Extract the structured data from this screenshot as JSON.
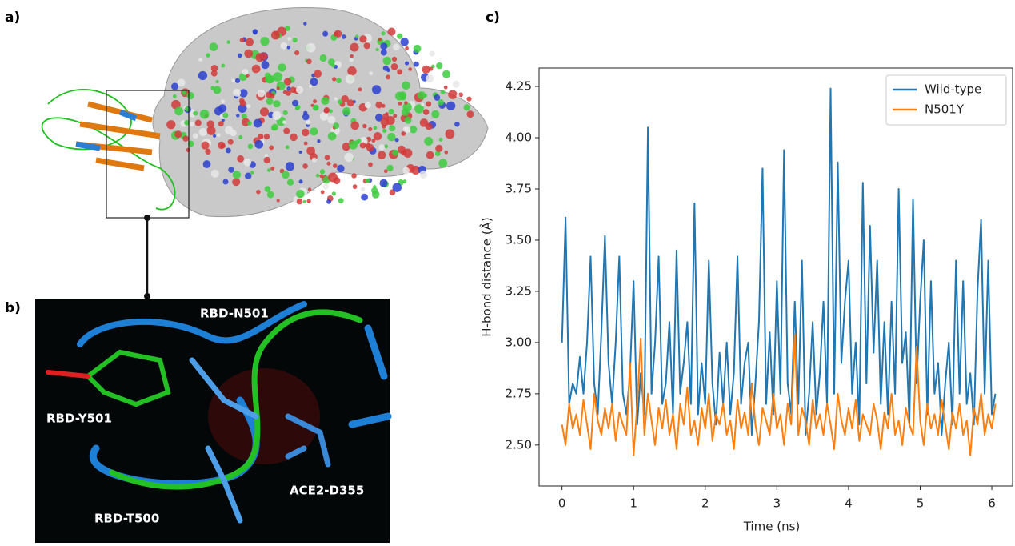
{
  "panels": {
    "a": {
      "label": "a)"
    },
    "b": {
      "label": "b)",
      "annotations": [
        "RBD-N501",
        "RBD-Y501",
        "RBD-T500",
        "ACE2-D355"
      ]
    }
  },
  "chart_data": {
    "type": "line",
    "label": "c)",
    "xlabel": "Time (ns)",
    "ylabel": "H-bond distance (Å)",
    "xlim": [
      -0.32,
      6.29
    ],
    "ylim": [
      2.3,
      4.34
    ],
    "xticks": [
      0,
      1,
      2,
      3,
      4,
      5,
      6
    ],
    "yticks": [
      {
        "value": 2.5,
        "label": "2.50"
      },
      2.75,
      {
        "value": 3.0,
        "label": "3.00"
      },
      3.25,
      {
        "value": 3.5,
        "label": "3.50"
      },
      3.75,
      {
        "value": 4.0,
        "label": "4.00"
      },
      4.25
    ],
    "legend": "upper right",
    "x": [
      0,
      0.05,
      0.1,
      0.15,
      0.2,
      0.25,
      0.3,
      0.35,
      0.4,
      0.45,
      0.5,
      0.55,
      0.6,
      0.65,
      0.7,
      0.75,
      0.8,
      0.85,
      0.9,
      0.95,
      1.0,
      1.05,
      1.1,
      1.15,
      1.2,
      1.25,
      1.3,
      1.35,
      1.4,
      1.45,
      1.5,
      1.55,
      1.6,
      1.65,
      1.7,
      1.75,
      1.8,
      1.85,
      1.9,
      1.95,
      2.0,
      2.05,
      2.1,
      2.15,
      2.2,
      2.25,
      2.3,
      2.35,
      2.4,
      2.45,
      2.5,
      2.55,
      2.6,
      2.65,
      2.7,
      2.75,
      2.8,
      2.85,
      2.9,
      2.95,
      3.0,
      3.05,
      3.1,
      3.15,
      3.2,
      3.25,
      3.3,
      3.35,
      3.4,
      3.45,
      3.5,
      3.55,
      3.6,
      3.65,
      3.7,
      3.75,
      3.8,
      3.85,
      3.9,
      3.95,
      4.0,
      4.05,
      4.1,
      4.15,
      4.2,
      4.25,
      4.3,
      4.35,
      4.4,
      4.45,
      4.5,
      4.55,
      4.6,
      4.65,
      4.7,
      4.75,
      4.8,
      4.85,
      4.9,
      4.95,
      5.0,
      5.05,
      5.1,
      5.15,
      5.2,
      5.25,
      5.3,
      5.35,
      5.4,
      5.45,
      5.5,
      5.55,
      5.6,
      5.65,
      5.7,
      5.75,
      5.8,
      5.85,
      5.9,
      5.95,
      6.0,
      6.05
    ],
    "series": [
      {
        "name": "Wild-type",
        "color": "#1f77b4",
        "values": [
          3.0,
          3.61,
          2.7,
          2.8,
          2.75,
          2.93,
          2.75,
          3.0,
          3.42,
          2.8,
          2.65,
          3.05,
          3.52,
          2.9,
          2.7,
          3.0,
          3.42,
          2.75,
          2.65,
          2.85,
          3.3,
          2.6,
          2.85,
          2.65,
          4.05,
          2.75,
          3.0,
          3.42,
          2.7,
          2.8,
          3.1,
          2.65,
          3.45,
          2.75,
          2.9,
          3.1,
          2.7,
          3.68,
          2.65,
          2.9,
          2.7,
          3.4,
          2.8,
          2.6,
          2.95,
          2.7,
          3.0,
          2.65,
          2.85,
          3.42,
          2.7,
          2.9,
          3.0,
          2.55,
          2.8,
          3.1,
          3.85,
          2.7,
          3.05,
          2.65,
          3.3,
          2.75,
          3.94,
          2.8,
          2.65,
          3.2,
          2.7,
          3.4,
          2.55,
          2.75,
          3.1,
          2.65,
          2.85,
          3.2,
          2.7,
          4.24,
          2.75,
          3.88,
          2.9,
          3.2,
          3.4,
          2.75,
          3.0,
          2.6,
          3.78,
          2.8,
          3.57,
          2.95,
          3.4,
          2.7,
          3.1,
          2.65,
          3.2,
          2.75,
          3.75,
          2.9,
          3.05,
          2.6,
          3.7,
          2.8,
          3.2,
          3.5,
          2.65,
          3.3,
          2.75,
          2.9,
          2.55,
          2.8,
          3.0,
          2.6,
          3.4,
          2.75,
          3.3,
          2.7,
          2.85,
          2.6,
          3.25,
          3.6,
          2.75,
          3.4,
          2.65,
          2.75
        ]
      },
      {
        "name": "N501Y",
        "color": "#ff7f0e",
        "values": [
          2.6,
          2.5,
          2.7,
          2.58,
          2.65,
          2.55,
          2.72,
          2.6,
          2.48,
          2.75,
          2.62,
          2.55,
          2.68,
          2.58,
          2.7,
          2.52,
          2.66,
          2.6,
          2.55,
          2.9,
          2.45,
          2.7,
          3.02,
          2.55,
          2.75,
          2.62,
          2.5,
          2.68,
          2.58,
          2.72,
          2.55,
          2.65,
          2.48,
          2.7,
          2.6,
          2.78,
          2.55,
          2.62,
          2.5,
          2.68,
          2.58,
          2.75,
          2.52,
          2.65,
          2.6,
          2.7,
          2.55,
          2.62,
          2.48,
          2.72,
          2.58,
          2.66,
          2.55,
          2.8,
          2.6,
          2.5,
          2.68,
          2.62,
          2.55,
          2.75,
          2.58,
          2.65,
          2.5,
          2.7,
          2.6,
          3.04,
          2.55,
          2.68,
          2.62,
          2.5,
          2.72,
          2.58,
          2.65,
          2.55,
          2.7,
          2.6,
          2.48,
          2.75,
          2.62,
          2.55,
          2.68,
          2.58,
          2.72,
          2.52,
          2.65,
          2.6,
          2.55,
          2.7,
          2.62,
          2.48,
          2.66,
          2.58,
          2.75,
          2.55,
          2.62,
          2.5,
          2.68,
          2.6,
          2.55,
          2.98,
          2.62,
          2.5,
          2.7,
          2.58,
          2.65,
          2.55,
          2.72,
          2.6,
          2.48,
          2.66,
          2.58,
          2.7,
          2.55,
          2.62,
          2.45,
          2.68,
          2.6,
          2.75,
          2.55,
          2.65,
          2.58,
          2.7
        ]
      }
    ]
  }
}
